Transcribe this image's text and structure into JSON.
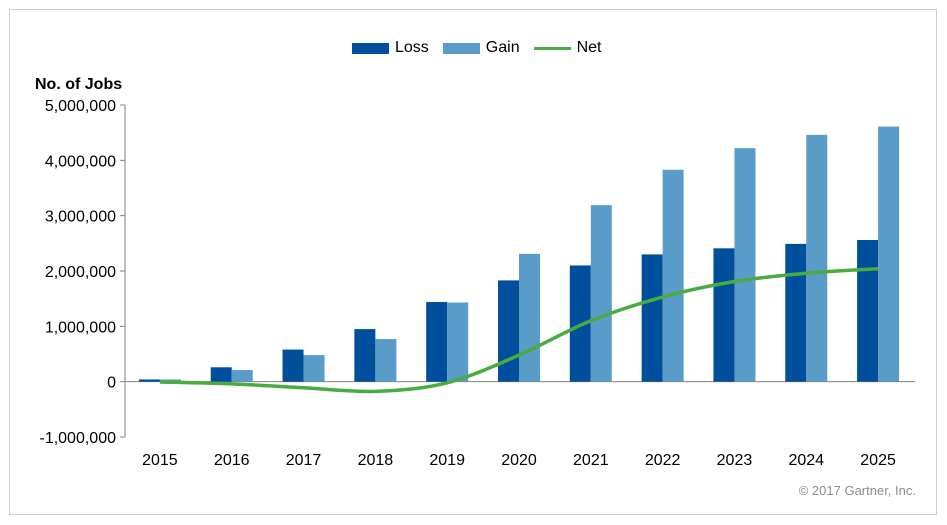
{
  "chart_data": {
    "type": "bar",
    "title": "",
    "ylabel": "No. of Jobs",
    "xlabel": "",
    "categories": [
      "2015",
      "2016",
      "2017",
      "2018",
      "2019",
      "2020",
      "2021",
      "2022",
      "2023",
      "2024",
      "2025"
    ],
    "ylim": [
      -1000000,
      5000000
    ],
    "yticks": [
      -1000000,
      0,
      1000000,
      2000000,
      3000000,
      4000000,
      5000000
    ],
    "ytick_labels": [
      "-1,000,000",
      "0",
      "1,000,000",
      "2,000,000",
      "3,000,000",
      "4,000,000",
      "5,000,000"
    ],
    "grid": false,
    "legend_position": "top-center",
    "series": [
      {
        "name": "Loss",
        "kind": "bar",
        "color": "#004f9c",
        "values": [
          40000,
          260000,
          580000,
          950000,
          1440000,
          1830000,
          2100000,
          2300000,
          2410000,
          2490000,
          2560000
        ]
      },
      {
        "name": "Gain",
        "kind": "bar",
        "color": "#5a9cc8",
        "values": [
          40000,
          210000,
          480000,
          770000,
          1430000,
          2310000,
          3190000,
          3830000,
          4220000,
          4460000,
          4610000
        ]
      },
      {
        "name": "Net",
        "kind": "line",
        "color": "#4aab42",
        "values": [
          -5000,
          -40000,
          -110000,
          -175000,
          -20000,
          480000,
          1100000,
          1530000,
          1810000,
          1960000,
          2040000
        ]
      }
    ]
  },
  "credit": "© 2017 Gartner, Inc."
}
